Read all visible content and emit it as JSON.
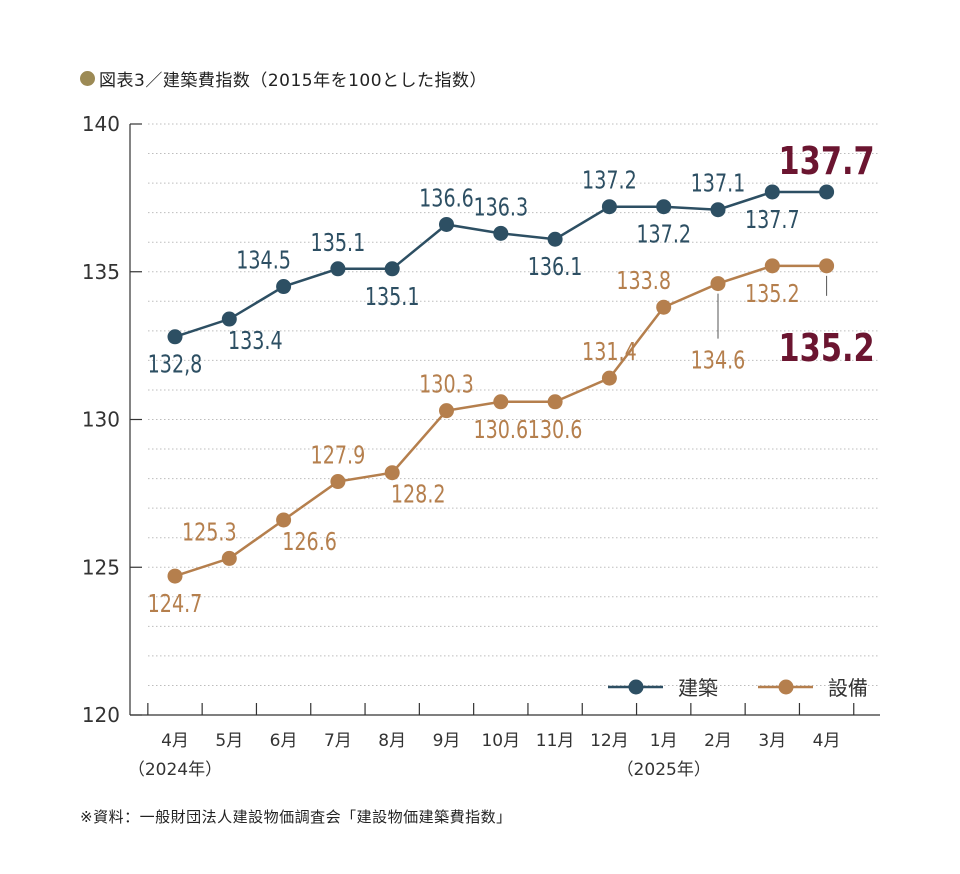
{
  "title_marker_color": "#9c8a55",
  "title": "図表3／建築費指数（2015年を100とした指数）",
  "source": "※資料：一般財団法人建設物価調査会「建設物価建築費指数」",
  "chart_data": {
    "type": "line",
    "categories": [
      "4月",
      "5月",
      "6月",
      "7月",
      "8月",
      "9月",
      "10月",
      "11月",
      "12月",
      "1月",
      "2月",
      "3月",
      "4月"
    ],
    "year_labels": [
      {
        "index": 0,
        "label": "（2024年）"
      },
      {
        "index": 9,
        "label": "（2025年）"
      }
    ],
    "ylim": [
      120,
      140
    ],
    "yticks": [
      "120",
      "125",
      "130",
      "135",
      "140"
    ],
    "grid": true,
    "legend": "bottom-right",
    "series": [
      {
        "name": "建築",
        "color": "#2d4f63",
        "values": [
          132.8,
          133.4,
          134.5,
          135.1,
          135.1,
          136.6,
          136.3,
          136.1,
          137.2,
          137.2,
          137.1,
          137.7,
          137.7
        ],
        "labels": [
          "132,8",
          "133.4",
          "134.5",
          "135.1",
          "135.1",
          "136.6",
          "136.3",
          "136.1",
          "137.2",
          "137.2",
          "137.1",
          "137.7",
          ""
        ],
        "label_pos": [
          "below",
          "below-right",
          "above-left",
          "above",
          "below",
          "above",
          "above",
          "below",
          "above",
          "below",
          "above",
          "below",
          "none"
        ],
        "highlight": "137.7",
        "highlight_color": "#6b1530"
      },
      {
        "name": "設備",
        "color": "#b57f4d",
        "values": [
          124.7,
          125.3,
          126.6,
          127.9,
          128.2,
          130.3,
          130.6,
          130.6,
          131.4,
          133.8,
          134.6,
          135.2,
          135.2
        ],
        "labels": [
          "124.7",
          "125.3",
          "126.6",
          "127.9",
          "128.2",
          "130.3",
          "130.6",
          "130.6",
          "131.4",
          "133.8",
          "134.6",
          "135.2",
          ""
        ],
        "label_pos": [
          "below",
          "above-left",
          "below-right",
          "above",
          "below-right",
          "above",
          "below",
          "below",
          "above",
          "above-left",
          "leader-below",
          "below",
          "none"
        ],
        "highlight": "135.2",
        "highlight_color": "#6b1530"
      }
    ]
  }
}
